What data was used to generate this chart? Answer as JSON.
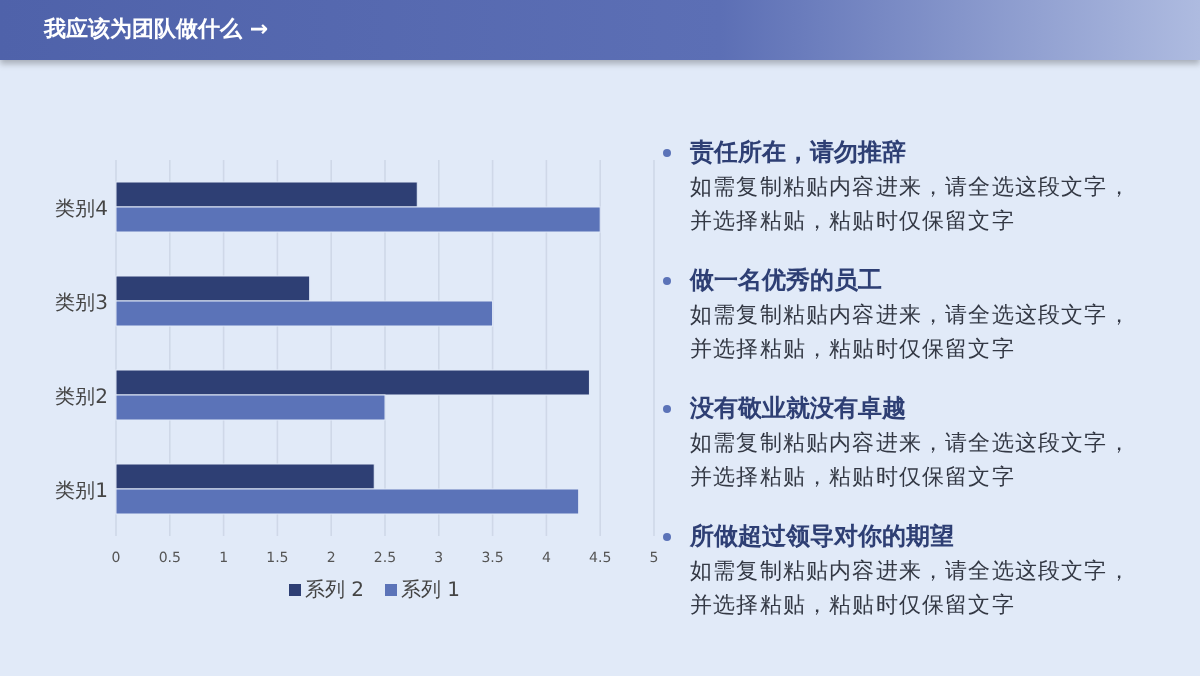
{
  "chart_data": [
    {
      "type": "bar",
      "title": "我应该为团队做什么 →",
      "orientation": "horizontal",
      "categories": [
        "类别4",
        "类别3",
        "类别2",
        "类别1"
      ],
      "series": [
        {
          "name": "系列 2",
          "color": "#2e3f74",
          "values": [
            2.8,
            1.8,
            4.4,
            2.4
          ]
        },
        {
          "name": "系列 1",
          "color": "#5b73b8",
          "values": [
            4.5,
            3.5,
            2.5,
            4.3
          ]
        }
      ],
      "xlim": [
        0,
        5
      ],
      "xticks": [
        0,
        0.5,
        1,
        1.5,
        2,
        2.5,
        3,
        3.5,
        4,
        4.5,
        5
      ],
      "grid": "x",
      "legend": "bottom"
    },
    {
      "type": "other",
      "annotations": [
        "责任所在，请勿推辞",
        "如需复制粘贴内容进来，请全选这段文字，并选择粘贴，粘贴时仅保留文字",
        "做一名优秀的员工",
        "如需复制粘贴内容进来，请全选这段文字，并选择粘贴，粘贴时仅保留文字",
        "没有敬业就没有卓越",
        "如需复制粘贴内容进来，请全选这段文字，并选择粘贴，粘贴时仅保留文字",
        "所做超过领导对你的期望",
        "如需复制粘贴内容进来，请全选这段文字，并选择粘贴，粘贴时仅保留文字"
      ]
    }
  ]
}
